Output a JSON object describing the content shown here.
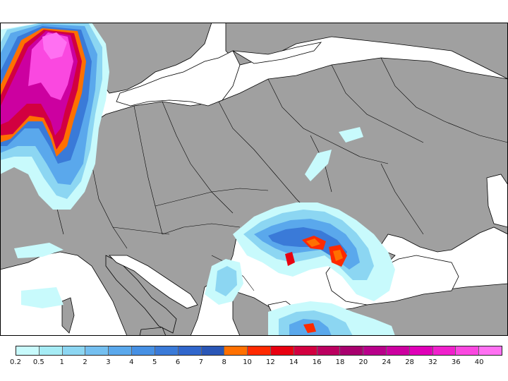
{
  "map": {
    "land_color": "#a0a0a0",
    "sea_color": "#ffffff",
    "border_color": "#000000",
    "regions": [
      "northern-europe-precip-band",
      "black-sea-western-precip-cluster",
      "eastern-mediterranean-precip"
    ]
  },
  "legend": {
    "levels": [
      {
        "value": "0.2",
        "color": "#c8fafc"
      },
      {
        "value": "0.5",
        "color": "#a6ecf5"
      },
      {
        "value": "1",
        "color": "#8cd6f2"
      },
      {
        "value": "2",
        "color": "#74bff0"
      },
      {
        "value": "3",
        "color": "#5aa8ec"
      },
      {
        "value": "4",
        "color": "#4690e4"
      },
      {
        "value": "5",
        "color": "#3a7ad8"
      },
      {
        "value": "6",
        "color": "#3066cc"
      },
      {
        "value": "7",
        "color": "#2a56b6"
      },
      {
        "value": "8",
        "color": "#ff7000"
      },
      {
        "value": "10",
        "color": "#ff2a00"
      },
      {
        "value": "12",
        "color": "#e80010"
      },
      {
        "value": "14",
        "color": "#d20040"
      },
      {
        "value": "16",
        "color": "#bb0060"
      },
      {
        "value": "18",
        "color": "#a8006e"
      },
      {
        "value": "20",
        "color": "#b8008a"
      },
      {
        "value": "24",
        "color": "#cc00a0"
      },
      {
        "value": "28",
        "color": "#e000b8"
      },
      {
        "value": "32",
        "color": "#f020cc"
      },
      {
        "value": "36",
        "color": "#fa48e0"
      },
      {
        "value": "40",
        "color": "#ff70f2"
      }
    ]
  }
}
